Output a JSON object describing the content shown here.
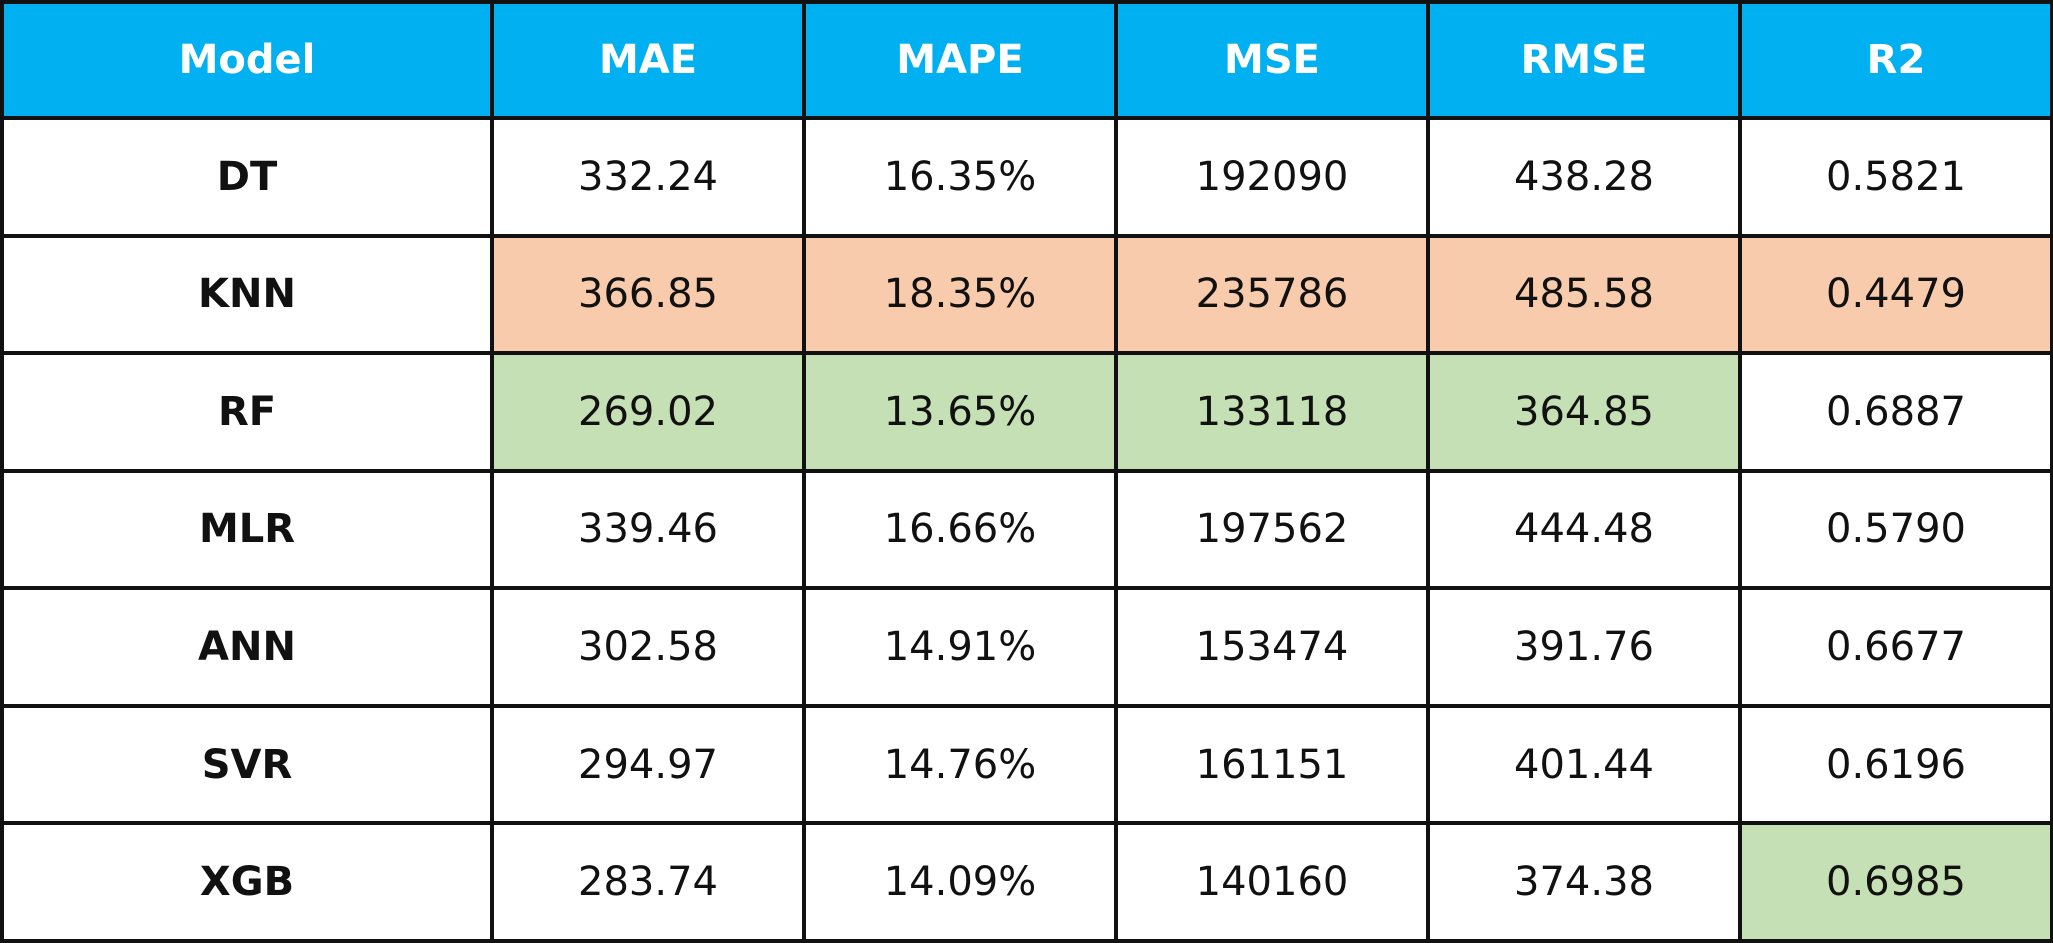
{
  "table": {
    "headers": [
      "Model",
      "MAE",
      "MAPE",
      "MSE",
      "RMSE",
      "R2"
    ],
    "colors": {
      "header_bg": "#00b0f0",
      "header_text": "#ffffff",
      "best_highlight": "#c5e0b4",
      "worst_highlight": "#f8cbad",
      "border": "#111111"
    },
    "rows": [
      {
        "model": "DT",
        "cells": [
          "332.24",
          "16.35%",
          "192090",
          "438.28",
          "0.5821"
        ],
        "highlight": [
          "",
          "",
          "",
          "",
          ""
        ]
      },
      {
        "model": "KNN",
        "cells": [
          "366.85",
          "18.35%",
          "235786",
          "485.58",
          "0.4479"
        ],
        "highlight": [
          "worst",
          "worst",
          "worst",
          "worst",
          "worst"
        ]
      },
      {
        "model": "RF",
        "cells": [
          "269.02",
          "13.65%",
          "133118",
          "364.85",
          "0.6887"
        ],
        "highlight": [
          "best",
          "best",
          "best",
          "best",
          ""
        ]
      },
      {
        "model": "MLR",
        "cells": [
          "339.46",
          "16.66%",
          "197562",
          "444.48",
          "0.5790"
        ],
        "highlight": [
          "",
          "",
          "",
          "",
          ""
        ]
      },
      {
        "model": "ANN",
        "cells": [
          "302.58",
          "14.91%",
          "153474",
          "391.76",
          "0.6677"
        ],
        "highlight": [
          "",
          "",
          "",
          "",
          ""
        ]
      },
      {
        "model": "SVR",
        "cells": [
          "294.97",
          "14.76%",
          "161151",
          "401.44",
          "0.6196"
        ],
        "highlight": [
          "",
          "",
          "",
          "",
          ""
        ]
      },
      {
        "model": "XGB",
        "cells": [
          "283.74",
          "14.09%",
          "140160",
          "374.38",
          "0.6985"
        ],
        "highlight": [
          "",
          "",
          "",
          "",
          "best"
        ]
      }
    ]
  }
}
